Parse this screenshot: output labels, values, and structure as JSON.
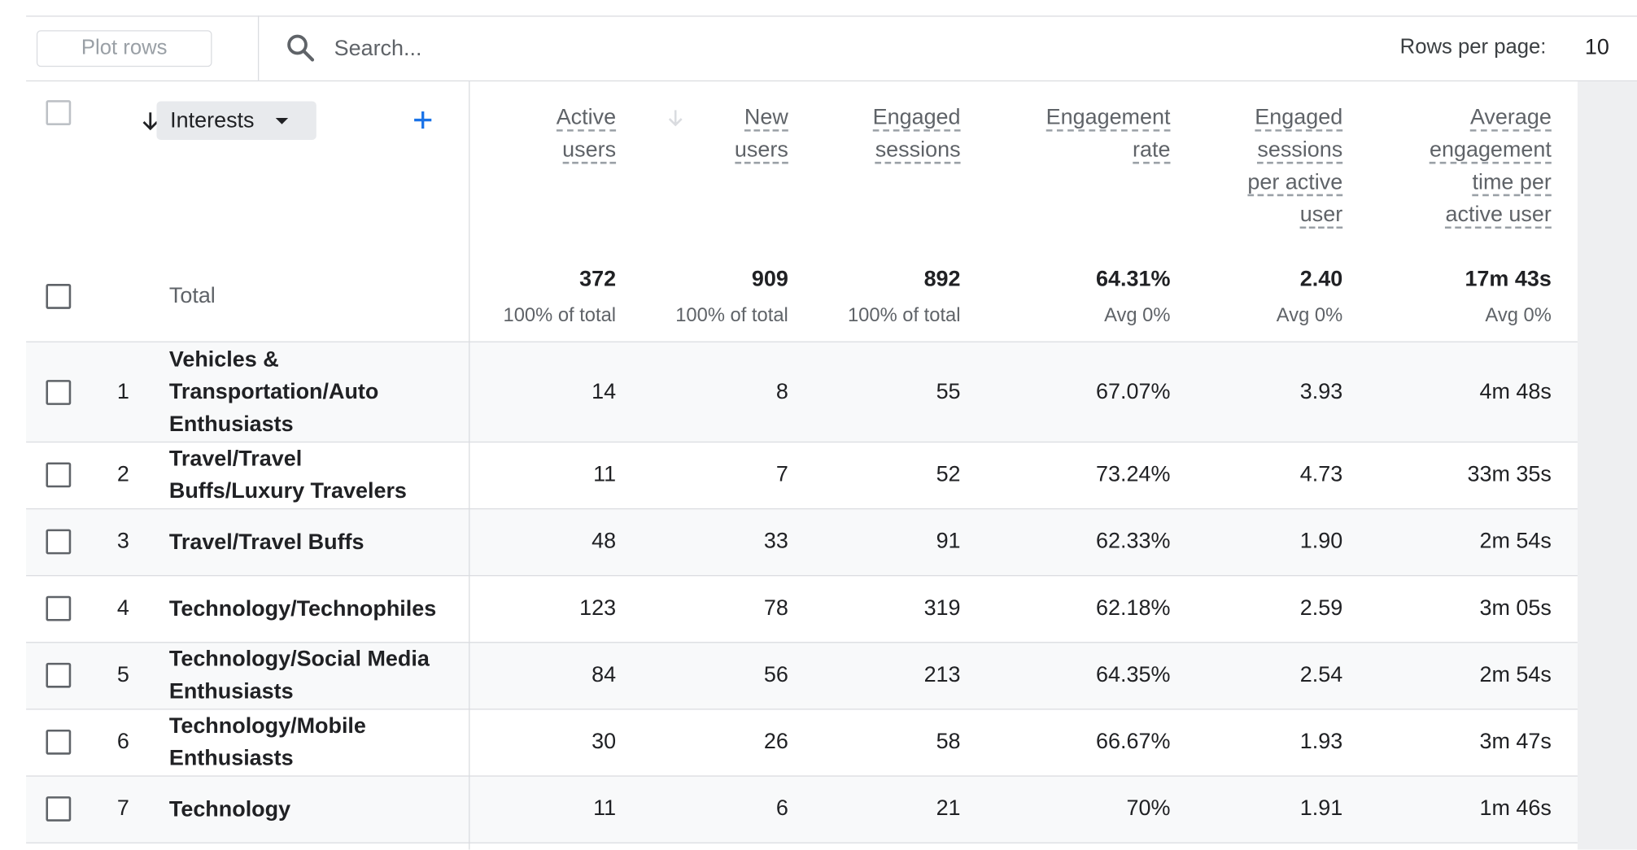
{
  "toolbar": {
    "plot_rows_label": "Plot rows",
    "search_placeholder": "Search...",
    "rows_per_page_label": "Rows per page:",
    "rows_per_page_value": "10"
  },
  "dimension": {
    "label": "Interests"
  },
  "columns": [
    {
      "lines": [
        "Active",
        "users"
      ]
    },
    {
      "lines": [
        "New",
        "users"
      ]
    },
    {
      "lines": [
        "Engaged",
        "sessions"
      ]
    },
    {
      "lines": [
        "Engagement",
        "rate"
      ]
    },
    {
      "lines": [
        "Engaged",
        "sessions",
        "per active",
        "user"
      ]
    },
    {
      "lines": [
        "Average",
        "engagement",
        "time per",
        "active user"
      ]
    }
  ],
  "total": {
    "label": "Total",
    "values": [
      "372",
      "909",
      "892",
      "64.31%",
      "2.40",
      "17m 43s"
    ],
    "subs": [
      "100% of total",
      "100% of total",
      "100% of total",
      "Avg 0%",
      "Avg 0%",
      "Avg 0%"
    ]
  },
  "rows": [
    {
      "rank": "1",
      "lines": [
        "Vehicles &",
        "Transportation/Auto",
        "Enthusiasts"
      ],
      "values": [
        "14",
        "8",
        "55",
        "67.07%",
        "3.93",
        "4m 48s"
      ]
    },
    {
      "rank": "2",
      "lines": [
        "Travel/Travel",
        "Buffs/Luxury Travelers"
      ],
      "values": [
        "11",
        "7",
        "52",
        "73.24%",
        "4.73",
        "33m 35s"
      ]
    },
    {
      "rank": "3",
      "lines": [
        "Travel/Travel Buffs"
      ],
      "values": [
        "48",
        "33",
        "91",
        "62.33%",
        "1.90",
        "2m 54s"
      ]
    },
    {
      "rank": "4",
      "lines": [
        "Technology/Technophiles"
      ],
      "values": [
        "123",
        "78",
        "319",
        "62.18%",
        "2.59",
        "3m 05s"
      ]
    },
    {
      "rank": "5",
      "lines": [
        "Technology/Social Media",
        "Enthusiasts"
      ],
      "values": [
        "84",
        "56",
        "213",
        "64.35%",
        "2.54",
        "2m 54s"
      ]
    },
    {
      "rank": "6",
      "lines": [
        "Technology/Mobile",
        "Enthusiasts"
      ],
      "values": [
        "30",
        "26",
        "58",
        "66.67%",
        "1.93",
        "3m 47s"
      ]
    },
    {
      "rank": "7",
      "lines": [
        "Technology"
      ],
      "values": [
        "11",
        "6",
        "21",
        "70%",
        "1.91",
        "1m 46s"
      ]
    }
  ],
  "colors": {
    "accent": "#1a73e8",
    "row_alt": "#f8f9fa",
    "border": "#dadce0",
    "muted": "#5f6368"
  }
}
